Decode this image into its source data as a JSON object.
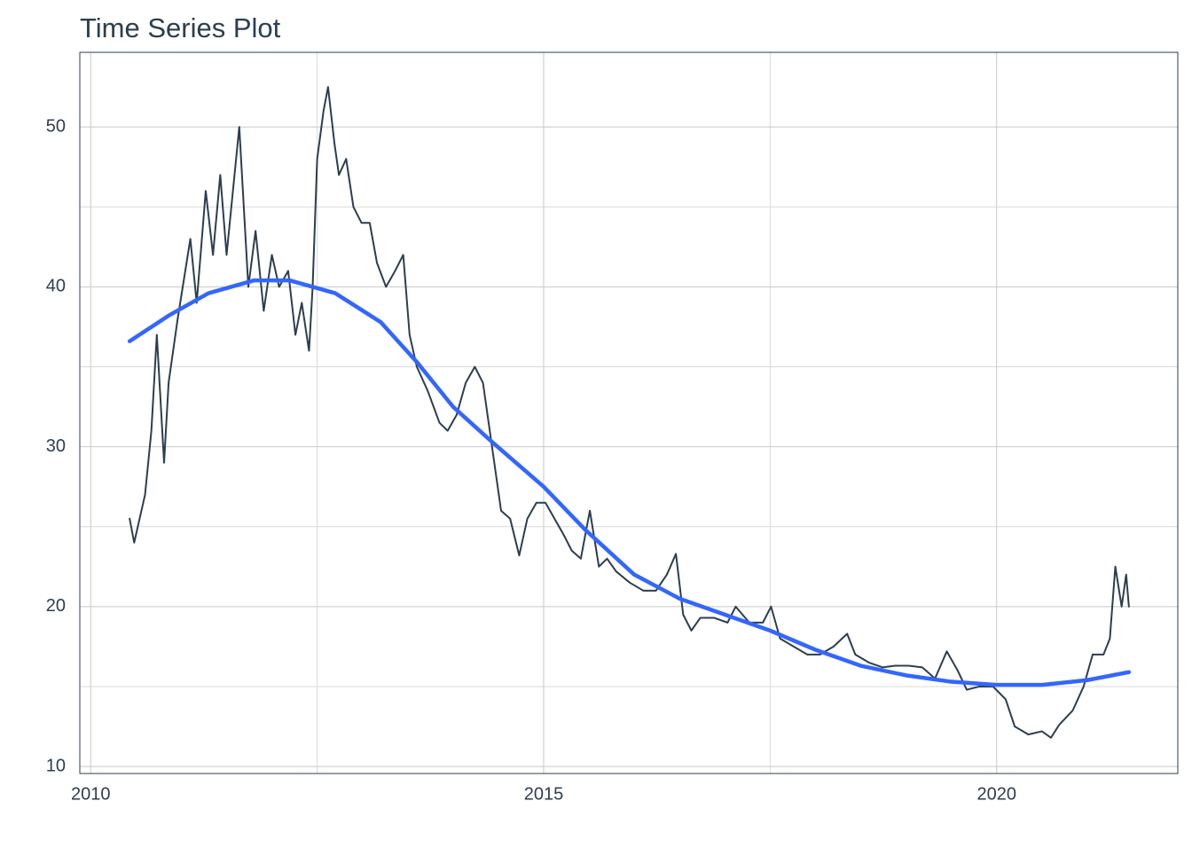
{
  "chart_data": {
    "type": "line",
    "title": "Time Series Plot",
    "xlim": [
      2009.88,
      2022.0
    ],
    "xticks": [
      2010,
      2015,
      2020
    ],
    "xminor": [
      2012.5,
      2017.5
    ],
    "ylim": [
      9.56,
      54.67
    ],
    "yticks": [
      10,
      20,
      30,
      40,
      50
    ],
    "yminor": [
      15,
      25,
      35,
      45
    ],
    "grid": true,
    "series": [
      {
        "color": "#2c3e50",
        "x": [
          2010.43,
          2010.48,
          2010.6,
          2010.67,
          2010.73,
          2010.81,
          2010.86,
          2010.96,
          2011.1,
          2011.17,
          2011.27,
          2011.35,
          2011.43,
          2011.5,
          2011.57,
          2011.64,
          2011.74,
          2011.82,
          2011.91,
          2012.0,
          2012.08,
          2012.18,
          2012.26,
          2012.33,
          2012.41,
          2012.45,
          2012.5,
          2012.57,
          2012.62,
          2012.69,
          2012.74,
          2012.82,
          2012.9,
          2012.99,
          2013.08,
          2013.16,
          2013.26,
          2013.36,
          2013.45,
          2013.52,
          2013.6,
          2013.72,
          2013.85,
          2013.94,
          2014.04,
          2014.14,
          2014.24,
          2014.33,
          2014.43,
          2014.53,
          2014.63,
          2014.73,
          2014.82,
          2014.92,
          2015.02,
          2015.12,
          2015.22,
          2015.31,
          2015.41,
          2015.51,
          2015.61,
          2015.7,
          2015.8,
          2015.95,
          2016.1,
          2016.24,
          2016.36,
          2016.46,
          2016.54,
          2016.63,
          2016.73,
          2016.88,
          2017.03,
          2017.12,
          2017.27,
          2017.42,
          2017.51,
          2017.61,
          2017.76,
          2017.91,
          2018.05,
          2018.2,
          2018.35,
          2018.44,
          2018.59,
          2018.74,
          2018.88,
          2019.03,
          2019.18,
          2019.32,
          2019.45,
          2019.57,
          2019.67,
          2019.81,
          2019.96,
          2020.1,
          2020.2,
          2020.35,
          2020.5,
          2020.6,
          2020.69,
          2020.84,
          2020.96,
          2021.06,
          2021.18,
          2021.25,
          2021.31,
          2021.38,
          2021.43,
          2021.46
        ],
        "values": [
          25.5,
          24,
          27,
          31,
          37,
          29,
          34,
          38,
          43,
          39,
          46,
          42,
          47,
          42,
          46,
          50,
          40,
          43.5,
          38.5,
          42,
          40,
          41,
          37,
          39,
          36,
          40,
          48,
          51,
          52.5,
          49,
          47,
          48,
          45,
          44,
          44,
          41.5,
          40,
          41,
          42,
          37,
          35,
          33.5,
          31.5,
          31,
          32,
          34,
          35,
          34,
          30,
          26,
          25.5,
          23.2,
          25.5,
          26.5,
          26.5,
          25.5,
          24.5,
          23.5,
          23,
          26,
          22.5,
          23,
          22.2,
          21.5,
          21,
          21,
          22,
          23.3,
          19.5,
          18.5,
          19.3,
          19.3,
          19,
          20,
          19,
          19,
          20,
          18,
          17.5,
          17,
          17,
          17.5,
          18.3,
          17,
          16.5,
          16.2,
          16.3,
          16.3,
          16.2,
          15.5,
          17.2,
          16,
          14.8,
          15,
          15,
          14.2,
          12.5,
          12,
          12.2,
          11.8,
          12.6,
          13.5,
          15,
          17,
          17,
          18,
          22.5,
          20,
          22,
          20
        ]
      },
      {
        "color": "#3366ff",
        "smooth": true,
        "x": [
          2010.43,
          2010.86,
          2011.3,
          2011.8,
          2012.2,
          2012.7,
          2013.2,
          2013.6,
          2014.0,
          2014.43,
          2015.0,
          2015.46,
          2016.0,
          2016.5,
          2017.0,
          2017.5,
          2018.0,
          2018.5,
          2019.0,
          2019.5,
          2020.0,
          2020.5,
          2021.0,
          2021.46
        ],
        "values": [
          36.6,
          38.2,
          39.6,
          40.4,
          40.4,
          39.6,
          37.8,
          35.3,
          32.5,
          30.3,
          27.5,
          24.8,
          22,
          20.5,
          19.5,
          18.5,
          17.3,
          16.3,
          15.7,
          15.3,
          15.1,
          15.1,
          15.4,
          15.9
        ]
      }
    ]
  }
}
